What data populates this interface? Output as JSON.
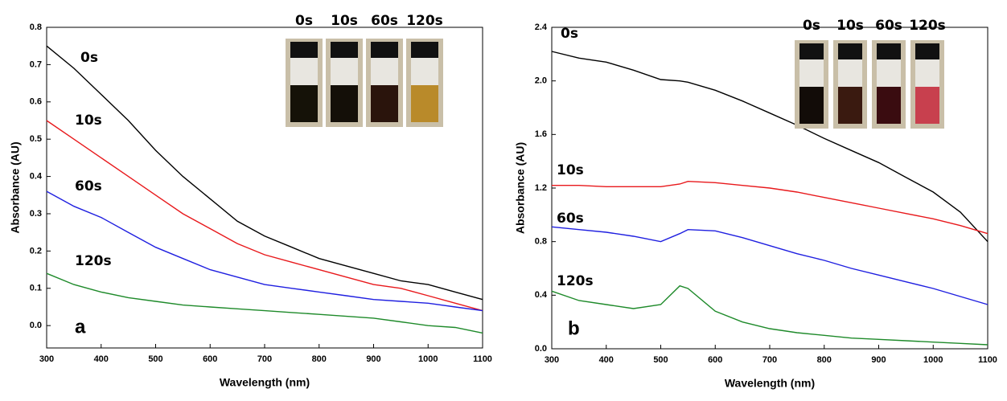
{
  "chart_data": [
    {
      "type": "line",
      "panel_label": "a",
      "xlabel": "Wavelength (nm)",
      "ylabel": "Absorbance (AU)",
      "inset_labels": [
        "0s",
        "10s",
        "60s",
        "120s"
      ],
      "x": [
        300,
        350,
        400,
        450,
        500,
        550,
        600,
        650,
        700,
        750,
        800,
        850,
        900,
        950,
        1000,
        1050,
        1100
      ],
      "xlim": [
        300,
        1100
      ],
      "xticks": [
        300,
        400,
        500,
        600,
        700,
        800,
        900,
        1000,
        1100
      ],
      "ylim": [
        -0.06,
        0.8
      ],
      "yticks": [
        {
          "value": 0,
          "label": "0.0"
        },
        0.1,
        0.2,
        0.3,
        0.4,
        0.5,
        0.6,
        0.7,
        0.8
      ],
      "series": [
        {
          "name": "0s",
          "color": "#000000",
          "values": [
            0.75,
            0.69,
            0.62,
            0.55,
            0.47,
            0.4,
            0.34,
            0.28,
            0.24,
            0.21,
            0.18,
            0.16,
            0.14,
            0.12,
            0.11,
            0.09,
            0.07
          ]
        },
        {
          "name": "10s",
          "color": "#e8191c",
          "values": [
            0.55,
            0.5,
            0.45,
            0.4,
            0.35,
            0.3,
            0.26,
            0.22,
            0.19,
            0.17,
            0.15,
            0.13,
            0.11,
            0.1,
            0.08,
            0.06,
            0.04
          ]
        },
        {
          "name": "60s",
          "color": "#1f1fe0",
          "values": [
            0.36,
            0.32,
            0.29,
            0.25,
            0.21,
            0.18,
            0.15,
            0.13,
            0.11,
            0.1,
            0.09,
            0.08,
            0.07,
            0.065,
            0.06,
            0.05,
            0.04
          ]
        },
        {
          "name": "120s",
          "color": "#1e8a2a",
          "values": [
            0.14,
            0.11,
            0.09,
            0.075,
            0.065,
            0.055,
            0.05,
            0.045,
            0.04,
            0.035,
            0.03,
            0.025,
            0.02,
            0.01,
            0.0,
            -0.005,
            -0.02
          ]
        }
      ]
    },
    {
      "type": "line",
      "panel_label": "b",
      "xlabel": "Wavelength (nm)",
      "ylabel": "Absorbance (AU)",
      "inset_labels": [
        "0s",
        "10s",
        "60s",
        "120s"
      ],
      "x": [
        300,
        350,
        400,
        450,
        500,
        535,
        550,
        600,
        650,
        700,
        750,
        800,
        850,
        900,
        950,
        1000,
        1050,
        1100
      ],
      "xlim": [
        300,
        1100
      ],
      "xticks": [
        300,
        400,
        500,
        600,
        700,
        800,
        900,
        1000,
        1100
      ],
      "ylim": [
        0,
        2.4
      ],
      "yticks": [
        {
          "value": 0,
          "label": "0.0"
        },
        0.4,
        0.8,
        1.2,
        1.6,
        {
          "value": 2,
          "label": "2.0"
        },
        2.4
      ],
      "series": [
        {
          "name": "0s",
          "color": "#000000",
          "values": [
            2.22,
            2.17,
            2.14,
            2.08,
            2.01,
            2.0,
            1.99,
            1.93,
            1.85,
            1.76,
            1.67,
            1.57,
            1.48,
            1.39,
            1.28,
            1.17,
            1.02,
            0.8
          ]
        },
        {
          "name": "10s",
          "color": "#e8191c",
          "values": [
            1.22,
            1.22,
            1.21,
            1.21,
            1.21,
            1.23,
            1.25,
            1.24,
            1.22,
            1.2,
            1.17,
            1.13,
            1.09,
            1.05,
            1.01,
            0.97,
            0.92,
            0.86
          ]
        },
        {
          "name": "60s",
          "color": "#1f1fe0",
          "values": [
            0.91,
            0.89,
            0.87,
            0.84,
            0.8,
            0.86,
            0.89,
            0.88,
            0.83,
            0.77,
            0.71,
            0.66,
            0.6,
            0.55,
            0.5,
            0.45,
            0.39,
            0.33
          ]
        },
        {
          "name": "120s",
          "color": "#1e8a2a",
          "values": [
            0.43,
            0.36,
            0.33,
            0.3,
            0.33,
            0.47,
            0.45,
            0.28,
            0.2,
            0.15,
            0.12,
            0.1,
            0.08,
            0.07,
            0.06,
            0.05,
            0.04,
            0.03
          ]
        }
      ]
    }
  ]
}
